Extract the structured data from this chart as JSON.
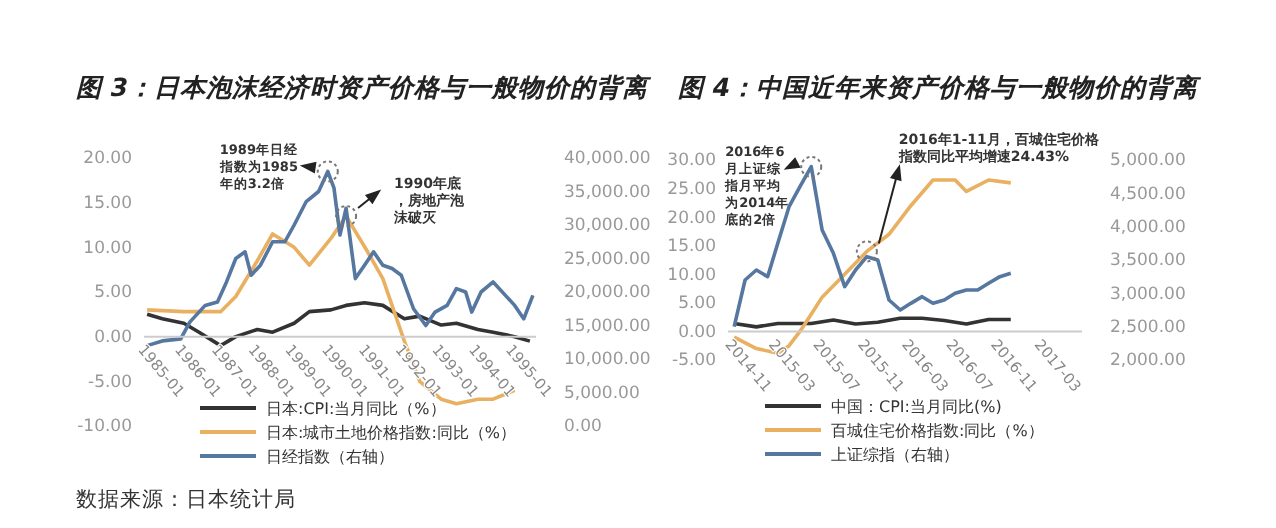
{
  "chart_data": [
    {
      "type": "line",
      "title": "图 3：日本泡沫经济时资产价格与一般物价的背离",
      "legend": "bottom",
      "xlim": [
        "1984-12",
        "1995-08"
      ],
      "xticks": [
        "1985-01",
        "1986-01",
        "1987-01",
        "1988-01",
        "1989-01",
        "1990-01",
        "1991-01",
        "1992-01",
        "1993-01",
        "1994-01",
        "1995-01"
      ],
      "ylim": [
        -10,
        20
      ],
      "yticks": [
        {
          "value": 20,
          "label": "20.00"
        },
        {
          "value": 15,
          "label": "15.00"
        },
        {
          "value": 10,
          "label": "10.00"
        },
        {
          "value": 5,
          "label": "5.00"
        },
        {
          "value": 0,
          "label": "0.00"
        },
        {
          "value": -5,
          "label": "-5.00"
        },
        {
          "value": -10,
          "label": "-10.00"
        }
      ],
      "y2lim": [
        0,
        40000
      ],
      "y2ticks": [
        {
          "value": 40000,
          "label": "40,000.00"
        },
        {
          "value": 35000,
          "label": "35,000.00"
        },
        {
          "value": 30000,
          "label": "30,000.00"
        },
        {
          "value": 25000,
          "label": "25,000.00"
        },
        {
          "value": 20000,
          "label": "20,000.00"
        },
        {
          "value": 15000,
          "label": "15,000.00"
        },
        {
          "value": 10000,
          "label": "10,000.00"
        },
        {
          "value": 5000,
          "label": "5,000.00"
        },
        {
          "value": 0,
          "label": "0.00"
        }
      ],
      "series": [
        {
          "name": "日本:CPI:当月同比（%）",
          "color": "#333333",
          "x": [
            "1985-01",
            "1985-06",
            "1986-01",
            "1986-06",
            "1987-01",
            "1987-06",
            "1988-01",
            "1988-06",
            "1989-01",
            "1989-06",
            "1990-01",
            "1990-06",
            "1990-12",
            "1991-06",
            "1992-01",
            "1992-06",
            "1993-01",
            "1993-06",
            "1994-01",
            "1994-06",
            "1995-01",
            "1995-06"
          ],
          "values": [
            2.5,
            2.0,
            1.5,
            0.5,
            -1.0,
            0,
            0.8,
            0.5,
            1.5,
            2.8,
            3.0,
            3.5,
            3.8,
            3.5,
            2.0,
            2.3,
            1.3,
            1.5,
            0.8,
            0.5,
            0,
            -0.5
          ]
        },
        {
          "name": "日本:城市土地价格指数:同比（%）",
          "color": "#e8b060",
          "x": [
            "1985-01",
            "1986-01",
            "1987-01",
            "1987-06",
            "1988-01",
            "1988-06",
            "1989-01",
            "1989-06",
            "1990-01",
            "1990-06",
            "1991-01",
            "1991-06",
            "1992-01",
            "1992-06",
            "1993-01",
            "1993-06",
            "1994-01",
            "1994-06",
            "1995-01"
          ],
          "values": [
            3.0,
            2.8,
            2.8,
            4.5,
            8.5,
            11.5,
            10,
            8,
            11,
            13.5,
            9.5,
            6.5,
            -0.5,
            -5,
            -7,
            -7.5,
            -7,
            -7,
            -6
          ]
        },
        {
          "name": "日经指数（右轴）",
          "color": "#5577a0",
          "axis": "y2",
          "x": [
            "1985-01",
            "1985-06",
            "1985-12",
            "1986-03",
            "1986-08",
            "1986-12",
            "1987-03",
            "1987-06",
            "1987-09",
            "1987-11",
            "1988-02",
            "1988-06",
            "1988-10",
            "1989-01",
            "1989-05",
            "1989-09",
            "1989-12",
            "1990-02",
            "1990-04",
            "1990-06",
            "1990-09",
            "1990-12",
            "1991-03",
            "1991-06",
            "1991-09",
            "1991-12",
            "1992-04",
            "1992-08",
            "1992-11",
            "1993-03",
            "1993-06",
            "1993-09",
            "1993-11",
            "1994-02",
            "1994-06",
            "1994-10",
            "1995-01",
            "1995-04",
            "1995-07"
          ],
          "values": [
            12000,
            12700,
            13000,
            15500,
            18000,
            18500,
            21500,
            25000,
            26000,
            22500,
            24000,
            27500,
            27500,
            30000,
            33500,
            35000,
            38000,
            35500,
            28500,
            32500,
            22000,
            24000,
            26000,
            24000,
            23500,
            22500,
            17500,
            15000,
            17000,
            18000,
            20500,
            20000,
            17000,
            20000,
            21500,
            19500,
            18000,
            16000,
            19500
          ]
        }
      ],
      "annotations": [
        {
          "text": "1989年日经指数为1985年的3.2倍",
          "x": "1989-12",
          "y": 18.5
        },
        {
          "text": "1990年底，房地产泡沫破灭",
          "x": "1990-06",
          "y": 13.5
        },
        "数据来源：日本统计局"
      ]
    },
    {
      "type": "line",
      "title": "图 4：中国近年来资产价格与一般物价的背离",
      "legend": "bottom",
      "xlim": [
        "2014-10-15",
        "2017-06-15"
      ],
      "xticks": [
        "2014-11",
        "2015-03",
        "2015-07",
        "2015-11",
        "2016-03",
        "2016-07",
        "2016-11",
        "2017-03"
      ],
      "ylim": [
        -5,
        30
      ],
      "yticks": [
        {
          "value": 30,
          "label": "30.00"
        },
        {
          "value": 25,
          "label": "25.00"
        },
        {
          "value": 20,
          "label": "20.00"
        },
        {
          "value": 15,
          "label": "15.00"
        },
        {
          "value": 10,
          "label": "10.00"
        },
        {
          "value": 5,
          "label": "5.00"
        },
        {
          "value": 0,
          "label": "0.00"
        },
        {
          "value": -5,
          "label": "-5.00"
        }
      ],
      "y2lim": [
        2000,
        5000
      ],
      "y2ticks": [
        {
          "value": 5000,
          "label": "5,000.00"
        },
        {
          "value": 4500,
          "label": "4,500.00"
        },
        {
          "value": 4000,
          "label": "4,000.00"
        },
        {
          "value": 3500,
          "label": "3,500.00"
        },
        {
          "value": 3000,
          "label": "3,000.00"
        },
        {
          "value": 2500,
          "label": "2,500.00"
        },
        {
          "value": 2000,
          "label": "2,000.00"
        }
      ],
      "series": [
        {
          "name": "中国：CPI:当月同比(%)",
          "color": "#333333",
          "x": [
            "2014-11",
            "2015-01",
            "2015-03",
            "2015-06",
            "2015-08",
            "2015-10",
            "2015-12",
            "2016-02",
            "2016-04",
            "2016-06",
            "2016-08",
            "2016-10",
            "2016-12"
          ],
          "values": [
            1.4,
            0.8,
            1.4,
            1.4,
            2.0,
            1.3,
            1.6,
            2.3,
            2.3,
            1.9,
            1.3,
            2.1,
            2.1
          ]
        },
        {
          "name": "百城住宅价格指数:同比（%）",
          "color": "#e8b060",
          "x": [
            "2014-11",
            "2015-01",
            "2015-03",
            "2015-04",
            "2015-05",
            "2015-06",
            "2015-07",
            "2015-09",
            "2015-11",
            "2016-01",
            "2016-03",
            "2016-05",
            "2016-07",
            "2016-08",
            "2016-10",
            "2016-12"
          ],
          "values": [
            -1,
            -3,
            -3.8,
            -2.5,
            0,
            3,
            6,
            10,
            14,
            17,
            22,
            26.5,
            26.5,
            24.5,
            26.5,
            26
          ]
        },
        {
          "name": "上证综指（右轴）",
          "color": "#5577a0",
          "axis": "y2",
          "x": [
            "2014-11",
            "2014-12",
            "2015-01",
            "2015-02",
            "2015-03",
            "2015-04",
            "2015-05",
            "2015-06",
            "2015-07",
            "2015-08",
            "2015-09",
            "2015-10",
            "2015-11",
            "2015-12",
            "2016-01",
            "2016-02",
            "2016-03",
            "2016-04",
            "2016-05",
            "2016-06",
            "2016-07",
            "2016-08",
            "2016-09",
            "2016-10",
            "2016-11",
            "2016-12"
          ],
          "values": [
            2500,
            3200,
            3350,
            3250,
            3750,
            4300,
            4600,
            4900,
            3950,
            3600,
            3100,
            3350,
            3550,
            3500,
            2900,
            2750,
            2850,
            2950,
            2850,
            2900,
            3000,
            3050,
            3050,
            3150,
            3250,
            3300
          ]
        }
      ],
      "annotations": [
        {
          "text": "2016年6月上证综指月平均为2014年底的2倍",
          "x": "2015-06",
          "y": 28.8
        },
        {
          "text": "2016年1-11月，百城住宅价格指数同比平均增速24.43%",
          "x": "2015-11",
          "y": 14
        }
      ]
    }
  ]
}
